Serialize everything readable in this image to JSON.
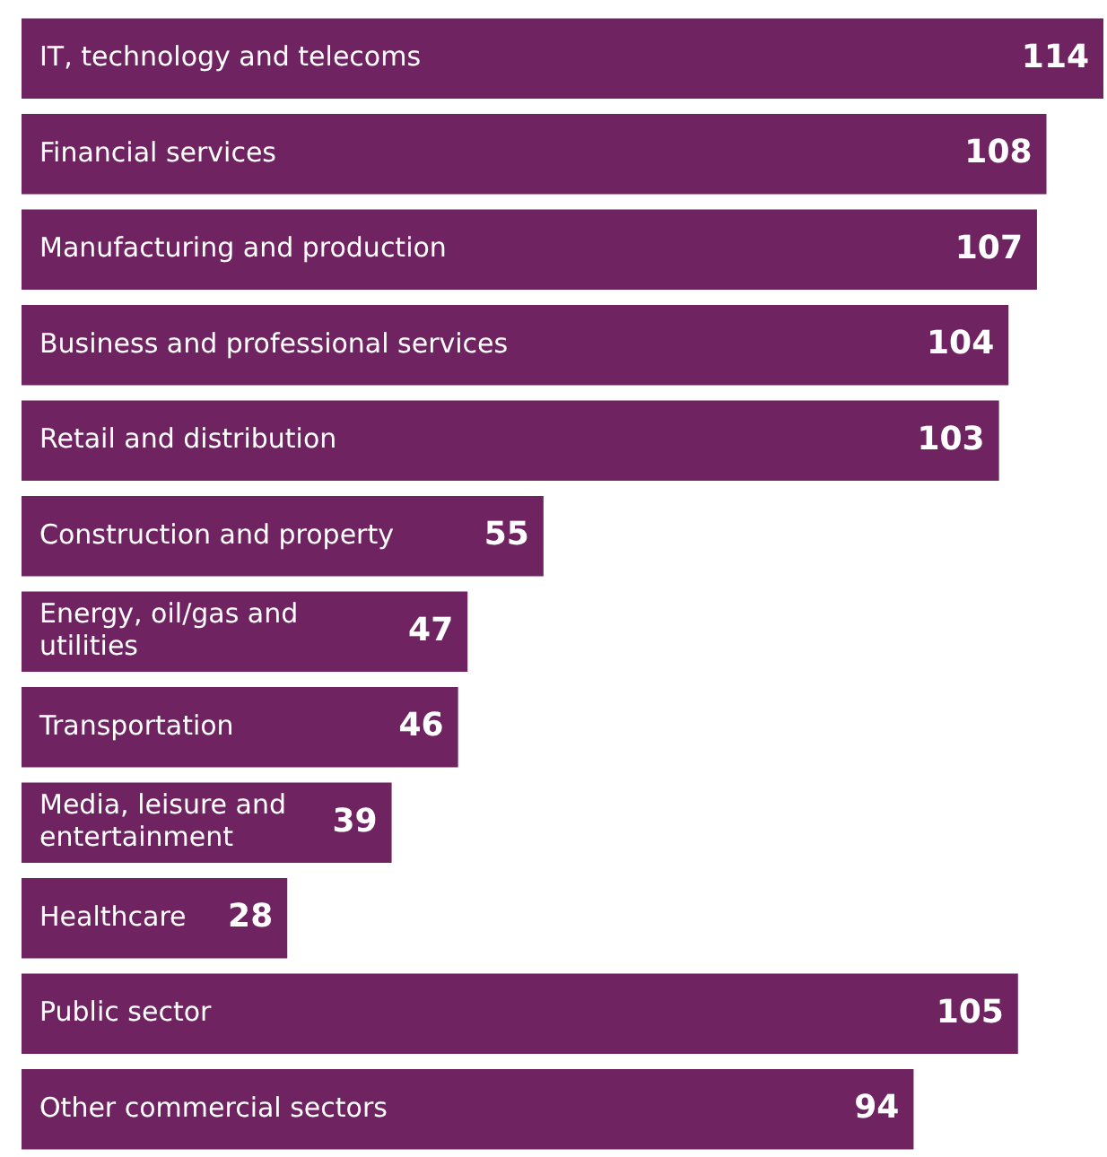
{
  "chart_data": {
    "type": "bar",
    "orientation": "horizontal",
    "categories": [
      "IT, technology and telecoms",
      "Financial services",
      "Manufacturing and production",
      "Business and professional services",
      "Retail and distribution",
      "Construction and property",
      "Energy, oil/gas and utilities",
      "Transportation",
      "Media, leisure and entertainment",
      "Healthcare",
      "Public sector",
      "Other commercial sectors"
    ],
    "values": [
      114,
      108,
      107,
      104,
      103,
      55,
      47,
      46,
      39,
      28,
      105,
      94
    ],
    "color": "#6f2461",
    "data_labels": true,
    "legend": false
  }
}
